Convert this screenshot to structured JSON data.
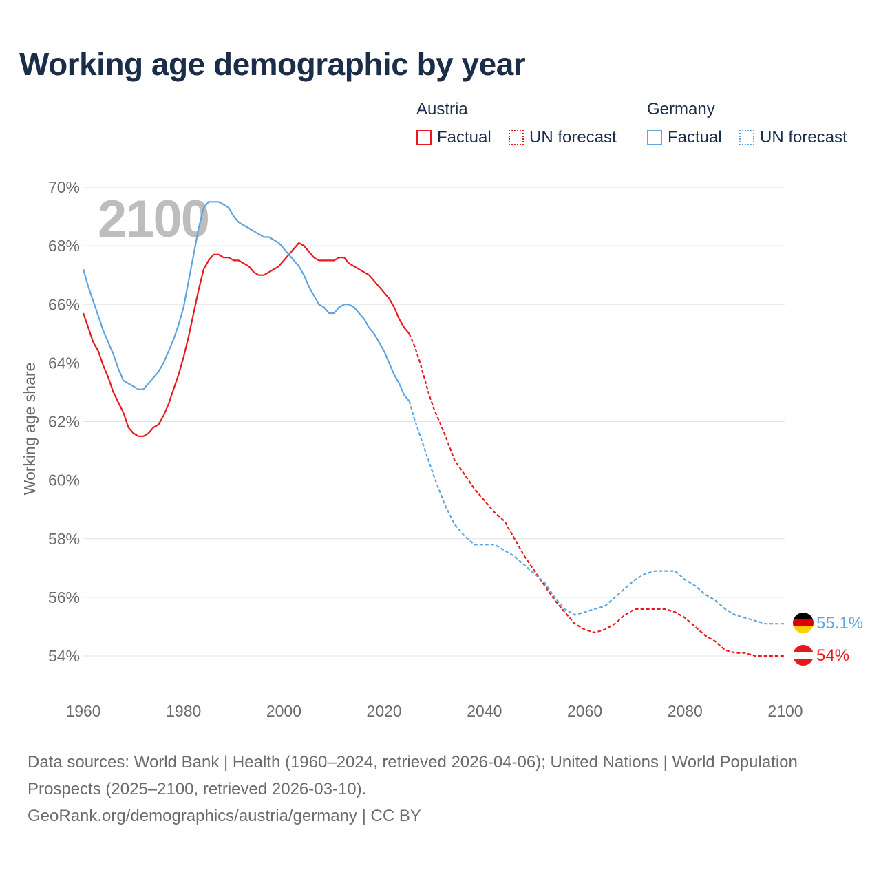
{
  "title": "Working age demographic by year",
  "legend": {
    "austria": {
      "heading": "Austria",
      "factual": "Factual",
      "forecast": "UN forecast",
      "color": "#e8191e"
    },
    "germany": {
      "heading": "Germany",
      "factual": "Factual",
      "forecast": "UN forecast",
      "color": "#5da5e0"
    }
  },
  "year_overlay": "2100",
  "footer": {
    "sources": "Data sources: World Bank | Health (1960–2024, retrieved 2026-04-06); United Nations | World Population Prospects (2025–2100, retrieved 2026-03-10).",
    "credit": "GeoRank.org/demographics/austria/germany | CC BY"
  },
  "end_labels": {
    "austria": "54%",
    "germany": "55.1%"
  },
  "icons": {
    "austria_flag": "austria-flag-icon",
    "germany_flag": "germany-flag-icon"
  },
  "chart_data": {
    "type": "line",
    "title": "Working age demographic by year",
    "xlabel": "",
    "ylabel": "Working age share",
    "xlim": [
      1960,
      2100
    ],
    "ylim": [
      53,
      70
    ],
    "x_ticks": [
      1960,
      1980,
      2000,
      2020,
      2040,
      2060,
      2080,
      2100
    ],
    "x_tick_labels": [
      "1960",
      "1980",
      "2000",
      "2020",
      "2040",
      "2060",
      "2080",
      "2100"
    ],
    "y_ticks": [
      54,
      56,
      58,
      60,
      62,
      64,
      66,
      68,
      70
    ],
    "y_tick_labels": [
      "54%",
      "56%",
      "58%",
      "60%",
      "62%",
      "64%",
      "66%",
      "68%",
      "70%"
    ],
    "grid": true,
    "forecast_start": 2025,
    "series": [
      {
        "name": "Austria",
        "color": "#e8191e",
        "points": [
          [
            1960,
            65.7
          ],
          [
            1962,
            64.7
          ],
          [
            1963,
            64.4
          ],
          [
            1964,
            63.9
          ],
          [
            1965,
            63.5
          ],
          [
            1966,
            63.0
          ],
          [
            1968,
            62.3
          ],
          [
            1969,
            61.8
          ],
          [
            1970,
            61.6
          ],
          [
            1971,
            61.5
          ],
          [
            1972,
            61.5
          ],
          [
            1973,
            61.6
          ],
          [
            1974,
            61.8
          ],
          [
            1975,
            61.9
          ],
          [
            1976,
            62.2
          ],
          [
            1977,
            62.6
          ],
          [
            1978,
            63.1
          ],
          [
            1979,
            63.6
          ],
          [
            1980,
            64.2
          ],
          [
            1981,
            64.9
          ],
          [
            1982,
            65.7
          ],
          [
            1983,
            66.5
          ],
          [
            1984,
            67.2
          ],
          [
            1985,
            67.5
          ],
          [
            1986,
            67.7
          ],
          [
            1987,
            67.7
          ],
          [
            1988,
            67.6
          ],
          [
            1989,
            67.6
          ],
          [
            1990,
            67.5
          ],
          [
            1991,
            67.5
          ],
          [
            1992,
            67.4
          ],
          [
            1993,
            67.3
          ],
          [
            1994,
            67.1
          ],
          [
            1995,
            67.0
          ],
          [
            1996,
            67.0
          ],
          [
            1997,
            67.1
          ],
          [
            1998,
            67.2
          ],
          [
            1999,
            67.3
          ],
          [
            2000,
            67.5
          ],
          [
            2001,
            67.7
          ],
          [
            2002,
            67.9
          ],
          [
            2003,
            68.1
          ],
          [
            2004,
            68.0
          ],
          [
            2005,
            67.8
          ],
          [
            2006,
            67.6
          ],
          [
            2007,
            67.5
          ],
          [
            2008,
            67.5
          ],
          [
            2009,
            67.5
          ],
          [
            2010,
            67.5
          ],
          [
            2011,
            67.6
          ],
          [
            2012,
            67.6
          ],
          [
            2013,
            67.4
          ],
          [
            2014,
            67.3
          ],
          [
            2015,
            67.2
          ],
          [
            2016,
            67.1
          ],
          [
            2017,
            67.0
          ],
          [
            2018,
            66.8
          ],
          [
            2019,
            66.6
          ],
          [
            2020,
            66.4
          ],
          [
            2021,
            66.2
          ],
          [
            2022,
            65.9
          ],
          [
            2023,
            65.5
          ],
          [
            2024,
            65.2
          ],
          [
            2025,
            65.0
          ],
          [
            2026,
            64.6
          ],
          [
            2027,
            64.1
          ],
          [
            2028,
            63.5
          ],
          [
            2029,
            62.9
          ],
          [
            2030,
            62.4
          ],
          [
            2032,
            61.6
          ],
          [
            2034,
            60.7
          ],
          [
            2036,
            60.2
          ],
          [
            2038,
            59.7
          ],
          [
            2040,
            59.3
          ],
          [
            2042,
            58.9
          ],
          [
            2044,
            58.6
          ],
          [
            2046,
            58.0
          ],
          [
            2048,
            57.4
          ],
          [
            2050,
            56.9
          ],
          [
            2052,
            56.4
          ],
          [
            2054,
            55.9
          ],
          [
            2056,
            55.5
          ],
          [
            2058,
            55.1
          ],
          [
            2060,
            54.9
          ],
          [
            2062,
            54.8
          ],
          [
            2064,
            54.9
          ],
          [
            2066,
            55.1
          ],
          [
            2068,
            55.4
          ],
          [
            2070,
            55.6
          ],
          [
            2072,
            55.6
          ],
          [
            2074,
            55.6
          ],
          [
            2076,
            55.6
          ],
          [
            2078,
            55.5
          ],
          [
            2080,
            55.3
          ],
          [
            2082,
            55.0
          ],
          [
            2084,
            54.7
          ],
          [
            2086,
            54.5
          ],
          [
            2088,
            54.2
          ],
          [
            2090,
            54.1
          ],
          [
            2092,
            54.1
          ],
          [
            2094,
            54.0
          ],
          [
            2096,
            54.0
          ],
          [
            2098,
            54.0
          ],
          [
            2100,
            54.0
          ]
        ]
      },
      {
        "name": "Germany",
        "color": "#5da5e0",
        "points": [
          [
            1960,
            67.2
          ],
          [
            1961,
            66.6
          ],
          [
            1962,
            66.1
          ],
          [
            1963,
            65.6
          ],
          [
            1964,
            65.1
          ],
          [
            1965,
            64.7
          ],
          [
            1966,
            64.3
          ],
          [
            1967,
            63.8
          ],
          [
            1968,
            63.4
          ],
          [
            1969,
            63.3
          ],
          [
            1970,
            63.2
          ],
          [
            1971,
            63.1
          ],
          [
            1972,
            63.1
          ],
          [
            1973,
            63.3
          ],
          [
            1974,
            63.5
          ],
          [
            1975,
            63.7
          ],
          [
            1976,
            64.0
          ],
          [
            1977,
            64.4
          ],
          [
            1978,
            64.8
          ],
          [
            1979,
            65.3
          ],
          [
            1980,
            65.9
          ],
          [
            1981,
            66.8
          ],
          [
            1982,
            67.7
          ],
          [
            1983,
            68.6
          ],
          [
            1984,
            69.3
          ],
          [
            1985,
            69.5
          ],
          [
            1986,
            69.5
          ],
          [
            1987,
            69.5
          ],
          [
            1988,
            69.4
          ],
          [
            1989,
            69.3
          ],
          [
            1990,
            69.0
          ],
          [
            1991,
            68.8
          ],
          [
            1992,
            68.7
          ],
          [
            1993,
            68.6
          ],
          [
            1994,
            68.5
          ],
          [
            1995,
            68.4
          ],
          [
            1996,
            68.3
          ],
          [
            1997,
            68.3
          ],
          [
            1998,
            68.2
          ],
          [
            1999,
            68.1
          ],
          [
            2000,
            67.9
          ],
          [
            2001,
            67.7
          ],
          [
            2002,
            67.5
          ],
          [
            2003,
            67.3
          ],
          [
            2004,
            67.0
          ],
          [
            2005,
            66.6
          ],
          [
            2006,
            66.3
          ],
          [
            2007,
            66.0
          ],
          [
            2008,
            65.9
          ],
          [
            2009,
            65.7
          ],
          [
            2010,
            65.7
          ],
          [
            2011,
            65.9
          ],
          [
            2012,
            66.0
          ],
          [
            2013,
            66.0
          ],
          [
            2014,
            65.9
          ],
          [
            2015,
            65.7
          ],
          [
            2016,
            65.5
          ],
          [
            2017,
            65.2
          ],
          [
            2018,
            65.0
          ],
          [
            2019,
            64.7
          ],
          [
            2020,
            64.4
          ],
          [
            2021,
            64.0
          ],
          [
            2022,
            63.6
          ],
          [
            2023,
            63.3
          ],
          [
            2024,
            62.9
          ],
          [
            2025,
            62.7
          ],
          [
            2026,
            62.1
          ],
          [
            2028,
            61.1
          ],
          [
            2030,
            60.1
          ],
          [
            2032,
            59.2
          ],
          [
            2034,
            58.5
          ],
          [
            2036,
            58.1
          ],
          [
            2038,
            57.8
          ],
          [
            2040,
            57.8
          ],
          [
            2042,
            57.8
          ],
          [
            2044,
            57.6
          ],
          [
            2046,
            57.4
          ],
          [
            2048,
            57.1
          ],
          [
            2050,
            56.8
          ],
          [
            2052,
            56.5
          ],
          [
            2054,
            56.0
          ],
          [
            2056,
            55.6
          ],
          [
            2058,
            55.4
          ],
          [
            2060,
            55.5
          ],
          [
            2062,
            55.6
          ],
          [
            2064,
            55.7
          ],
          [
            2066,
            56.0
          ],
          [
            2068,
            56.3
          ],
          [
            2070,
            56.6
          ],
          [
            2072,
            56.8
          ],
          [
            2074,
            56.9
          ],
          [
            2076,
            56.9
          ],
          [
            2078,
            56.9
          ],
          [
            2080,
            56.6
          ],
          [
            2082,
            56.4
          ],
          [
            2084,
            56.1
          ],
          [
            2086,
            55.9
          ],
          [
            2088,
            55.6
          ],
          [
            2090,
            55.4
          ],
          [
            2092,
            55.3
          ],
          [
            2094,
            55.2
          ],
          [
            2096,
            55.1
          ],
          [
            2098,
            55.1
          ],
          [
            2100,
            55.1
          ]
        ]
      }
    ]
  }
}
